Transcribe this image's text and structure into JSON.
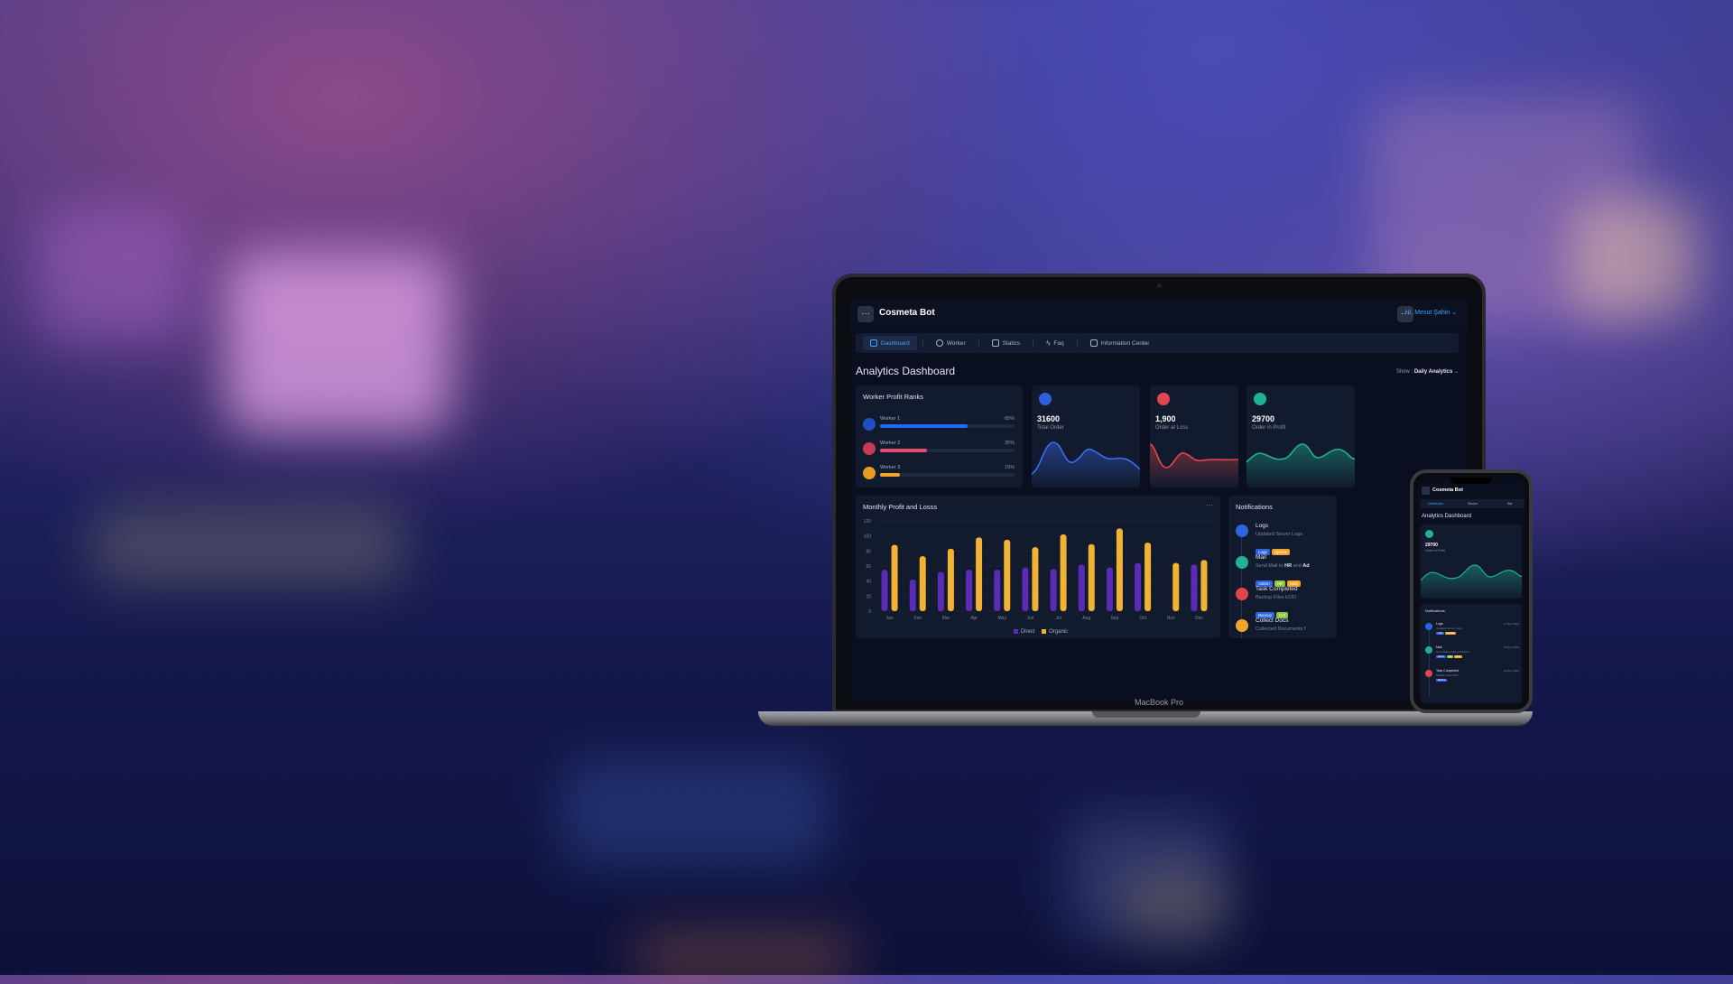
{
  "app": {
    "brand": "Cosmeta Bot",
    "user_greeting": "Hi, Mesut Şahin",
    "menu_glyph": "···"
  },
  "nav": [
    {
      "label": "Dashboard",
      "icon": "home-icon",
      "active": true
    },
    {
      "label": "Worker",
      "icon": "gear-icon",
      "active": false
    },
    {
      "label": "Statics",
      "icon": "box-icon",
      "active": false
    },
    {
      "label": "Faq",
      "icon": "bolt-icon",
      "active": false
    },
    {
      "label": "Information Center",
      "icon": "layout-icon",
      "active": false
    }
  ],
  "page": {
    "title": "Analytics Dashboard",
    "show_label": "Show :",
    "show_value": "Daily Analytics"
  },
  "worker_ranks": {
    "title": "Worker Profit Ranks",
    "workers": [
      {
        "name": "Worker 1",
        "percent_label": "65%",
        "value": 0.65,
        "color": "#1f6bff"
      },
      {
        "name": "Worker 2",
        "percent_label": "35%",
        "value": 0.35,
        "color": "#e24f6c"
      },
      {
        "name": "Worker 3",
        "percent_label": "15%",
        "value": 0.15,
        "color": "#f2a42d"
      }
    ]
  },
  "stats": [
    {
      "value": "31600",
      "label": "Total Order",
      "color": "#3b6cf5",
      "icon": "users-icon"
    },
    {
      "value": "1,900",
      "label": "Order at Loss",
      "color": "#e2474f",
      "icon": "link-icon"
    },
    {
      "value": "29700",
      "label": "Order in Profit",
      "color": "#1eb393",
      "icon": "chat-icon"
    }
  ],
  "chart_data": {
    "type": "bar",
    "title": "Monthly Profit and Losss",
    "categories": [
      "Jan",
      "Feb",
      "Mar",
      "Apr",
      "May",
      "Jun",
      "Jul",
      "Aug",
      "Sep",
      "Oct",
      "Nov",
      "Dec"
    ],
    "series": [
      {
        "name": "Direct",
        "color": "#5b2bb5",
        "values": [
          55,
          42,
          52,
          55,
          55,
          58,
          56,
          62,
          58,
          64,
          0,
          62
        ]
      },
      {
        "name": "Organic",
        "color": "#f2b233",
        "values": [
          88,
          73,
          83,
          98,
          95,
          85,
          102,
          89,
          110,
          91,
          64,
          68
        ]
      }
    ],
    "y_ticks": [
      "0",
      "20",
      "40",
      "60",
      "80",
      "100",
      "120"
    ],
    "ylim": [
      0,
      120
    ],
    "legend": "bottom",
    "more_glyph": "···"
  },
  "notifications": {
    "title": "Notifications",
    "items": [
      {
        "title": "Logs",
        "sub": "Updated Server Logs",
        "color": "#2d63e0",
        "tags": [
          {
            "text": "Logs",
            "color": "#2d63e0"
          },
          {
            "text": "Update",
            "color": "#f2a42d"
          }
        ]
      },
      {
        "title": "Mail",
        "sub_prefix": "Send Mail to ",
        "sub_bold1": "HR",
        "sub_mid": " and ",
        "sub_bold2": "Ad",
        "color": "#1eb393",
        "tags": [
          {
            "text": "Admin",
            "color": "#2d63e0"
          },
          {
            "text": "HR",
            "color": "#8cc63f"
          },
          {
            "text": "Mail",
            "color": "#f2a42d"
          }
        ]
      },
      {
        "title": "Task Completed",
        "sub": "Backup Files EOD",
        "color": "#e2474f",
        "tags": [
          {
            "text": "Backup",
            "color": "#2d63e0"
          },
          {
            "text": "Crit",
            "color": "#8cc63f"
          }
        ]
      },
      {
        "title": "Collect Docs",
        "sub": "Collected Documents f",
        "color": "#f2a42d",
        "tags": []
      }
    ]
  },
  "laptop_label": "MacBook Pro",
  "phone": {
    "brand": "Cosmeta Bot",
    "nav": [
      "Dashboard",
      "Worker",
      "Sta"
    ],
    "title": "Analytics Dashboard",
    "stat_value": "29700",
    "stat_label": "Order in Profit",
    "notif_title": "Notifications",
    "notif_items": [
      {
        "title": "Logs",
        "sub": "Updated Server Logs",
        "time": "17 Dec 2021",
        "tags": [
          "Logs",
          "Update"
        ]
      },
      {
        "title": "Mail",
        "sub": "Send Mail to HR and Admin",
        "time": "18 Dec 2021",
        "tags": [
          "Admin",
          "HR",
          "Mail"
        ]
      },
      {
        "title": "Task Completed",
        "sub": "Backup Files EOD",
        "time": "19 Dec 2021",
        "tags": [
          "Backup"
        ]
      }
    ]
  }
}
